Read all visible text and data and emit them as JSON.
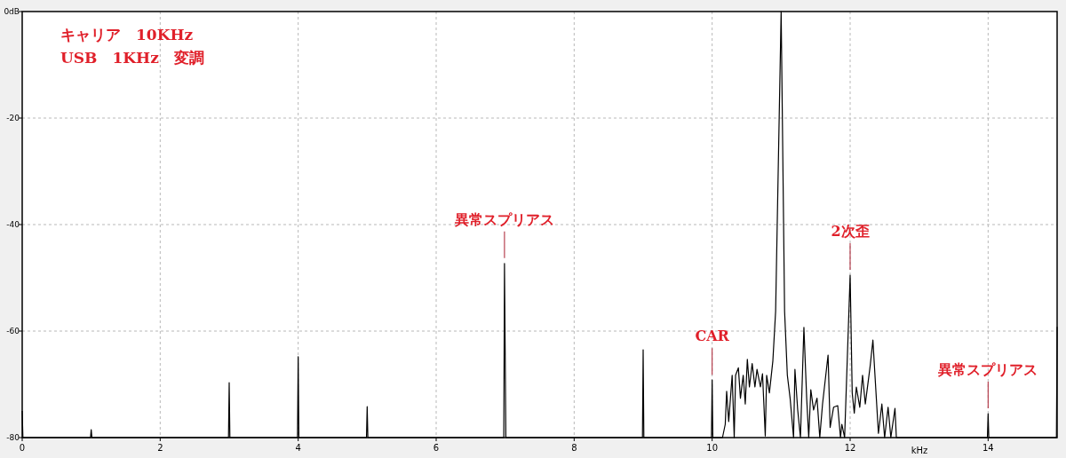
{
  "chart_data": {
    "type": "line",
    "xlabel": "kHz",
    "xlim": [
      0,
      15
    ],
    "xticks": [
      0,
      2,
      4,
      6,
      8,
      10,
      12,
      14
    ],
    "ylim": [
      -80,
      0
    ],
    "yticks": [
      {
        "value": 0,
        "label": "0dB"
      },
      -20,
      -40,
      -60,
      -80
    ],
    "grid": true,
    "marker": "none",
    "line_style": "solid",
    "annotations": [
      "キャリア　10KHz",
      "USB　1KHz　変調",
      {
        "text": "異常スプリアス",
        "x": 6.99,
        "y": -47.3
      },
      {
        "text": "2次歪",
        "x": 12,
        "y": -49.5
      },
      {
        "text": "CAR",
        "x": 10,
        "y": -69.2
      },
      {
        "text": "異常スプリアス",
        "x": 14,
        "y": -75.5
      }
    ],
    "series": [
      {
        "color": "#000000",
        "x": [
          0,
          0.01,
          0.99,
          1,
          1.01,
          2.99,
          3,
          3.01,
          3.99,
          4,
          4.01,
          4.99,
          5,
          5.01,
          6.98,
          6.99,
          7.01,
          8.99,
          9,
          9.01,
          9.99,
          10,
          10.01,
          10.15,
          10.19,
          10.21,
          10.24,
          10.29,
          10.32,
          10.34,
          10.38,
          10.41,
          10.45,
          10.48,
          10.51,
          10.54,
          10.58,
          10.62,
          10.65,
          10.7,
          10.73,
          10.77,
          10.79,
          10.83,
          10.88,
          10.92,
          11,
          11.05,
          11.09,
          11.13,
          11.18,
          11.2,
          11.24,
          11.28,
          11.33,
          11.37,
          11.4,
          11.43,
          11.47,
          11.52,
          11.56,
          11.6,
          11.68,
          11.71,
          11.76,
          11.82,
          11.86,
          11.88,
          11.92,
          12,
          12.03,
          12.06,
          12.09,
          12.14,
          12.18,
          12.22,
          12.29,
          12.33,
          12.37,
          12.41,
          12.46,
          12.5,
          12.55,
          12.59,
          12.65,
          12.67,
          13.99,
          14,
          14.01,
          14.99,
          15
        ],
        "values": [
          -75,
          -80,
          -80,
          -78.5,
          -80,
          -80,
          -69.7,
          -80,
          -80,
          -64.8,
          -80,
          -80,
          -74.2,
          -80,
          -80,
          -47.3,
          -80,
          -80,
          -63.5,
          -80,
          -80,
          -69.2,
          -80,
          -80,
          -77.5,
          -71.3,
          -77,
          -68.3,
          -80,
          -68.3,
          -66.9,
          -72.6,
          -68.3,
          -73.7,
          -65.3,
          -70.5,
          -66.1,
          -70.5,
          -67.2,
          -70.5,
          -68,
          -79.7,
          -68.3,
          -71.6,
          -65.6,
          -56.3,
          0,
          -56.3,
          -68.3,
          -72.6,
          -80,
          -67.2,
          -74.8,
          -80,
          -59.3,
          -72.6,
          -80,
          -71,
          -74.8,
          -72.6,
          -80,
          -73.7,
          -64.5,
          -78.1,
          -74.3,
          -74,
          -80,
          -77.5,
          -80,
          -49.5,
          -71.6,
          -75.4,
          -70.5,
          -74.3,
          -68.3,
          -73.7,
          -66.6,
          -61.7,
          -70.5,
          -79.2,
          -73.7,
          -80,
          -74.3,
          -80,
          -74.5,
          -80,
          -80,
          -75.5,
          -80,
          -80,
          -59.2
        ]
      }
    ]
  }
}
